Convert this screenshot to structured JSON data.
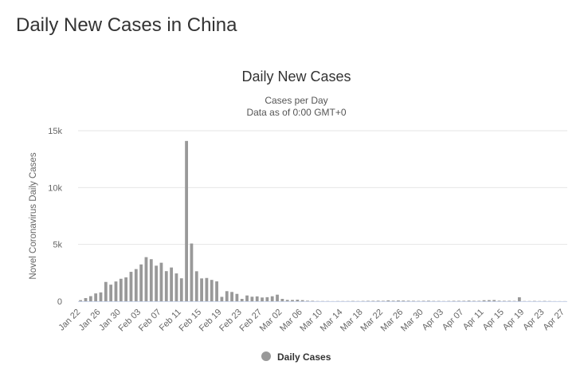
{
  "page": {
    "title": "Daily New Cases in China"
  },
  "chart_data": {
    "type": "bar",
    "title": "Daily New Cases",
    "subtitle_lines": [
      "Cases per Day",
      "Data as of 0:00 GMT+0"
    ],
    "ylabel": "Novel Coronavirus Daily Cases",
    "xlabel": "",
    "ylim": [
      0,
      15000
    ],
    "y_ticks": [
      0,
      5000,
      10000,
      15000
    ],
    "y_tick_labels": [
      "0",
      "5k",
      "10k",
      "15k"
    ],
    "x_tick_labels": [
      "Jan 22",
      "Jan 26",
      "Jan 30",
      "Feb 03",
      "Feb 07",
      "Feb 11",
      "Feb 15",
      "Feb 19",
      "Feb 23",
      "Feb 27",
      "Mar 02",
      "Mar 06",
      "Mar 10",
      "Mar 14",
      "Mar 18",
      "Mar 22",
      "Mar 26",
      "Mar 30",
      "Apr 03",
      "Apr 07",
      "Apr 11",
      "Apr 15",
      "Apr 19",
      "Apr 23",
      "Apr 27"
    ],
    "categories": [
      "Jan 22",
      "Jan 23",
      "Jan 24",
      "Jan 25",
      "Jan 26",
      "Jan 27",
      "Jan 28",
      "Jan 29",
      "Jan 30",
      "Jan 31",
      "Feb 01",
      "Feb 02",
      "Feb 03",
      "Feb 04",
      "Feb 05",
      "Feb 06",
      "Feb 07",
      "Feb 08",
      "Feb 09",
      "Feb 10",
      "Feb 11",
      "Feb 12",
      "Feb 13",
      "Feb 14",
      "Feb 15",
      "Feb 16",
      "Feb 17",
      "Feb 18",
      "Feb 19",
      "Feb 20",
      "Feb 21",
      "Feb 22",
      "Feb 23",
      "Feb 24",
      "Feb 25",
      "Feb 26",
      "Feb 27",
      "Feb 28",
      "Feb 29",
      "Mar 01",
      "Mar 02",
      "Mar 03",
      "Mar 04",
      "Mar 05",
      "Mar 06",
      "Mar 07",
      "Mar 08",
      "Mar 09",
      "Mar 10",
      "Mar 11",
      "Mar 12",
      "Mar 13",
      "Mar 14",
      "Mar 15",
      "Mar 16",
      "Mar 17",
      "Mar 18",
      "Mar 19",
      "Mar 20",
      "Mar 21",
      "Mar 22",
      "Mar 23",
      "Mar 24",
      "Mar 25",
      "Mar 26",
      "Mar 27",
      "Mar 28",
      "Mar 29",
      "Mar 30",
      "Mar 31",
      "Apr 01",
      "Apr 02",
      "Apr 03",
      "Apr 04",
      "Apr 05",
      "Apr 06",
      "Apr 07",
      "Apr 08",
      "Apr 09",
      "Apr 10",
      "Apr 11",
      "Apr 12",
      "Apr 13",
      "Apr 14",
      "Apr 15",
      "Apr 16",
      "Apr 17",
      "Apr 18",
      "Apr 19",
      "Apr 20",
      "Apr 21",
      "Apr 22",
      "Apr 23",
      "Apr 24",
      "Apr 25",
      "Apr 26",
      "Apr 27"
    ],
    "series": [
      {
        "name": "Daily Cases",
        "color": "#999999",
        "values": [
          100,
          280,
          450,
          690,
          780,
          1700,
          1460,
          1740,
          1980,
          2100,
          2590,
          2830,
          3240,
          3880,
          3700,
          3130,
          3390,
          2650,
          2970,
          2450,
          2020,
          14100,
          5080,
          2640,
          2010,
          2050,
          1880,
          1750,
          390,
          890,
          820,
          650,
          210,
          510,
          400,
          430,
          330,
          360,
          440,
          580,
          210,
          120,
          120,
          140,
          100,
          50,
          40,
          20,
          20,
          20,
          10,
          20,
          20,
          20,
          30,
          20,
          30,
          40,
          40,
          50,
          40,
          80,
          50,
          70,
          60,
          50,
          40,
          30,
          40,
          50,
          30,
          30,
          20,
          30,
          40,
          40,
          40,
          60,
          40,
          40,
          90,
          100,
          110,
          50,
          40,
          40,
          30,
          350,
          20,
          20,
          30,
          20,
          30,
          20,
          10,
          10,
          10
        ]
      }
    ],
    "legend": {
      "position": "bottom-center",
      "label": "Daily Cases",
      "color": "#999999"
    },
    "grid": true,
    "grid_color": "#e6e6e6",
    "axis_color": "#ccd6eb"
  }
}
